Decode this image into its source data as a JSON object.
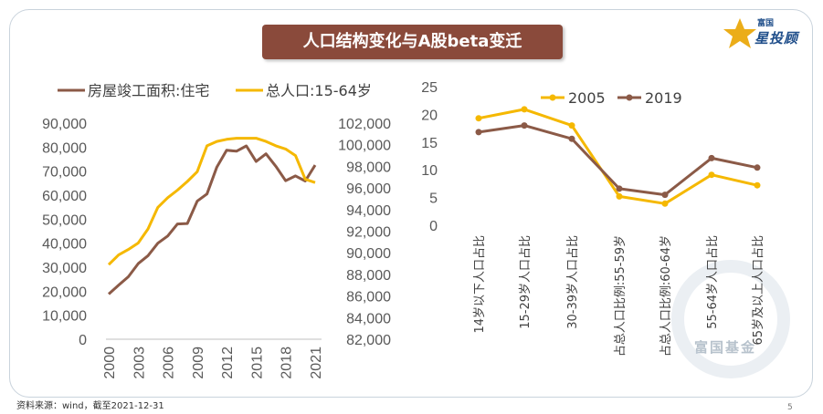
{
  "title": "人口结构变化与A股beta变迁",
  "brand": {
    "name": "星投顾",
    "small": "富国"
  },
  "watermark": "富国基金",
  "source": "资料来源：wind，截至2021-12-31",
  "page_number": "5",
  "colors": {
    "brown": "#8b5a47",
    "gold": "#f5b800",
    "banner": "#8a4a3b",
    "logo": "#1f4e8a"
  },
  "chart_data": [
    {
      "type": "line",
      "title": "",
      "x": [
        2000,
        2001,
        2002,
        2003,
        2004,
        2005,
        2006,
        2007,
        2008,
        2009,
        2010,
        2011,
        2012,
        2013,
        2014,
        2015,
        2016,
        2017,
        2018,
        2019,
        2020,
        2021
      ],
      "x_ticks": [
        "2000",
        "2003",
        "2006",
        "2009",
        "2012",
        "2015",
        "2018",
        "2021"
      ],
      "legend_position": "top",
      "y_left": {
        "ticks": [
          "0",
          "10,000",
          "20,000",
          "30,000",
          "40,000",
          "50,000",
          "60,000",
          "70,000",
          "80,000",
          "90,000"
        ],
        "range": [
          0,
          90000
        ]
      },
      "y_right": {
        "ticks": [
          "82,000",
          "84,000",
          "86,000",
          "88,000",
          "90,000",
          "92,000",
          "94,000",
          "96,000",
          "98,000",
          "100,000",
          "102,000"
        ],
        "range": [
          82000,
          102000
        ]
      },
      "series": [
        {
          "name": "房屋竣工面积:住宅",
          "axis": "left",
          "color": "#8b5a47",
          "values": [
            18800,
            22500,
            26000,
            31500,
            34800,
            40000,
            43000,
            48000,
            48200,
            57500,
            60500,
            71700,
            78700,
            78300,
            80500,
            74000,
            77200,
            72000,
            66000,
            68000,
            65900,
            72500
          ]
        },
        {
          "name": "总人口:15-64岁",
          "axis": "right",
          "color": "#f5b800",
          "values": [
            88900,
            89800,
            90300,
            90900,
            92200,
            94200,
            95100,
            95800,
            96600,
            97500,
            99900,
            100300,
            100500,
            100600,
            100600,
            100600,
            100300,
            99900,
            99600,
            99000,
            96800,
            96500
          ]
        }
      ]
    },
    {
      "type": "line",
      "title": "",
      "categories": [
        "14岁以下人口占比",
        "15-29岁人口占比",
        "30-39岁人口占比",
        "占总人口比例:55-59岁",
        "占总人口比例:60-64岁",
        "55-64岁人口占比",
        "65岁及以上人口占比"
      ],
      "y_ticks": [
        "0",
        "5",
        "10",
        "15",
        "20",
        "25"
      ],
      "ylim": [
        0,
        25
      ],
      "legend_position": "top",
      "series": [
        {
          "name": "2005",
          "color": "#f5b800",
          "values": [
            19.3,
            20.9,
            18.0,
            5.2,
            3.9,
            9.1,
            7.2
          ]
        },
        {
          "name": "2019",
          "color": "#8b5a47",
          "values": [
            16.8,
            18.0,
            15.6,
            6.6,
            5.5,
            12.1,
            10.4
          ]
        }
      ]
    }
  ]
}
